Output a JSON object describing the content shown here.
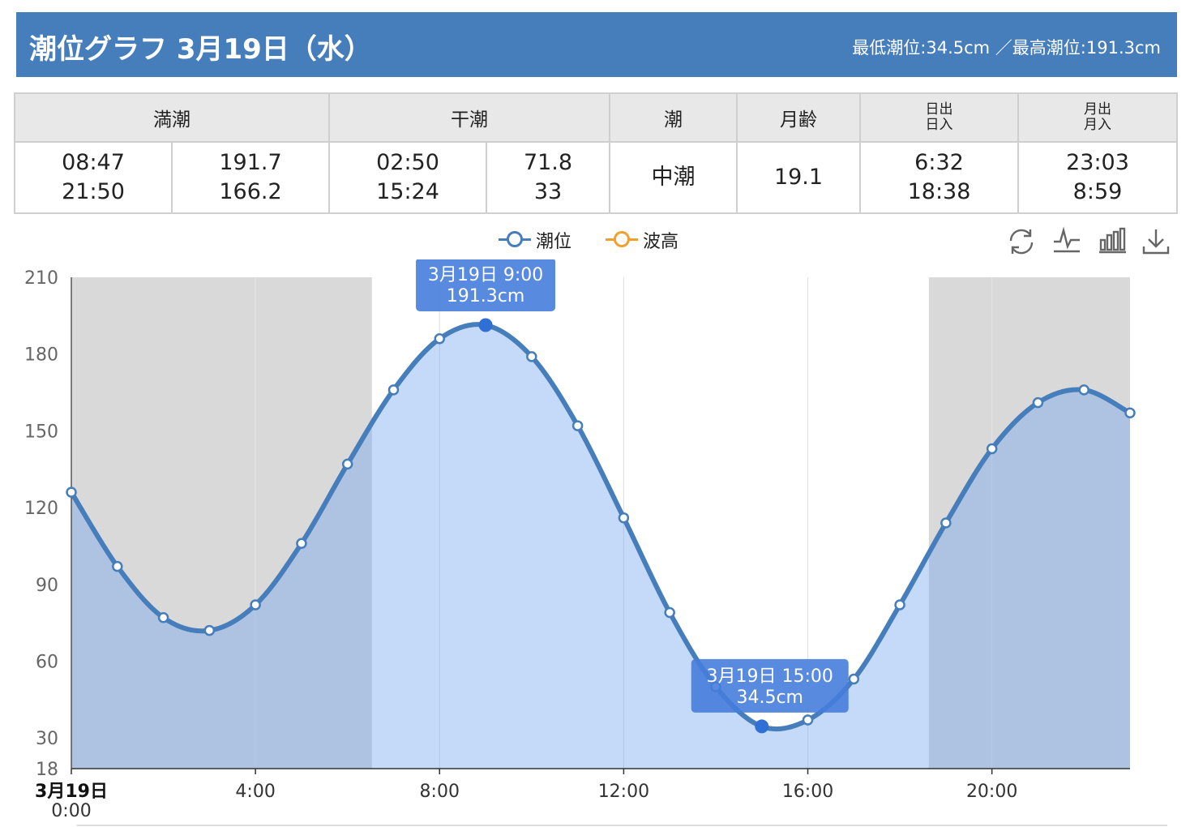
{
  "header": {
    "title": "潮位グラフ 3月19日（水）",
    "range": "最低潮位:34.5cm ／最高潮位:191.3cm",
    "color": "#467dbb"
  },
  "info_table": {
    "headers": {
      "high_tide": "満潮",
      "low_tide": "干潮",
      "tide": "潮",
      "moon_age": "月齢",
      "sun_line1": "日出",
      "sun_line2": "日入",
      "moon_line1": "月出",
      "moon_line2": "月入"
    },
    "high_tide": {
      "time1": "08:47",
      "time2": "21:50",
      "level1": "191.7",
      "level2": "166.2"
    },
    "low_tide": {
      "time1": "02:50",
      "time2": "15:24",
      "level1": "71.8",
      "level2": "33"
    },
    "tide": "中潮",
    "moon_age": "19.1",
    "sunrise": "6:32",
    "sunset": "18:38",
    "moonrise": "23:03",
    "moonset": "8:59"
  },
  "legend": [
    {
      "label": "潮位",
      "color": "#467dbb"
    },
    {
      "label": "波高",
      "color": "#f0a030"
    }
  ],
  "toolbox": [
    "refresh-icon",
    "line-chart-icon",
    "bar-chart-icon",
    "download-icon"
  ],
  "chart_data": {
    "type": "line",
    "title": "",
    "xlabel": "",
    "ylabel": "",
    "x_range": [
      0,
      23
    ],
    "ylim": [
      18,
      210
    ],
    "y_ticks": [
      18,
      30,
      60,
      90,
      120,
      150,
      180,
      210
    ],
    "x_ticks": [
      {
        "value": 0,
        "label": "3月19日",
        "sublabel": "0:00"
      },
      {
        "value": 4,
        "label": "4:00"
      },
      {
        "value": 8,
        "label": "8:00"
      },
      {
        "value": 12,
        "label": "12:00"
      },
      {
        "value": 16,
        "label": "16:00"
      },
      {
        "value": 20,
        "label": "20:00"
      }
    ],
    "night_bands": [
      [
        0,
        6.53
      ],
      [
        18.63,
        23
      ]
    ],
    "series": [
      {
        "name": "潮位",
        "color": "#467dbb",
        "x": [
          0,
          1,
          2,
          3,
          4,
          5,
          6,
          7,
          8,
          9,
          10,
          11,
          12,
          13,
          14,
          15,
          16,
          17,
          18,
          19,
          20,
          21,
          22,
          23
        ],
        "values": [
          126,
          97,
          77,
          72,
          82,
          106,
          137,
          166,
          186,
          191.3,
          179,
          152,
          116,
          79,
          50,
          34.5,
          37,
          53,
          82,
          114,
          143,
          161,
          166,
          157
        ]
      },
      {
        "name": "波高",
        "color": "#f0a030",
        "x": [],
        "values": []
      }
    ],
    "annotations": [
      {
        "x": 9,
        "y": 191.3,
        "label_line1": "3月19日 9:00",
        "label_line2": "191.3cm"
      },
      {
        "x": 15,
        "y": 34.5,
        "label_line1": "3月19日 15:00",
        "label_line2": "34.5cm"
      }
    ],
    "grid": true,
    "legend_position": "top-center"
  }
}
